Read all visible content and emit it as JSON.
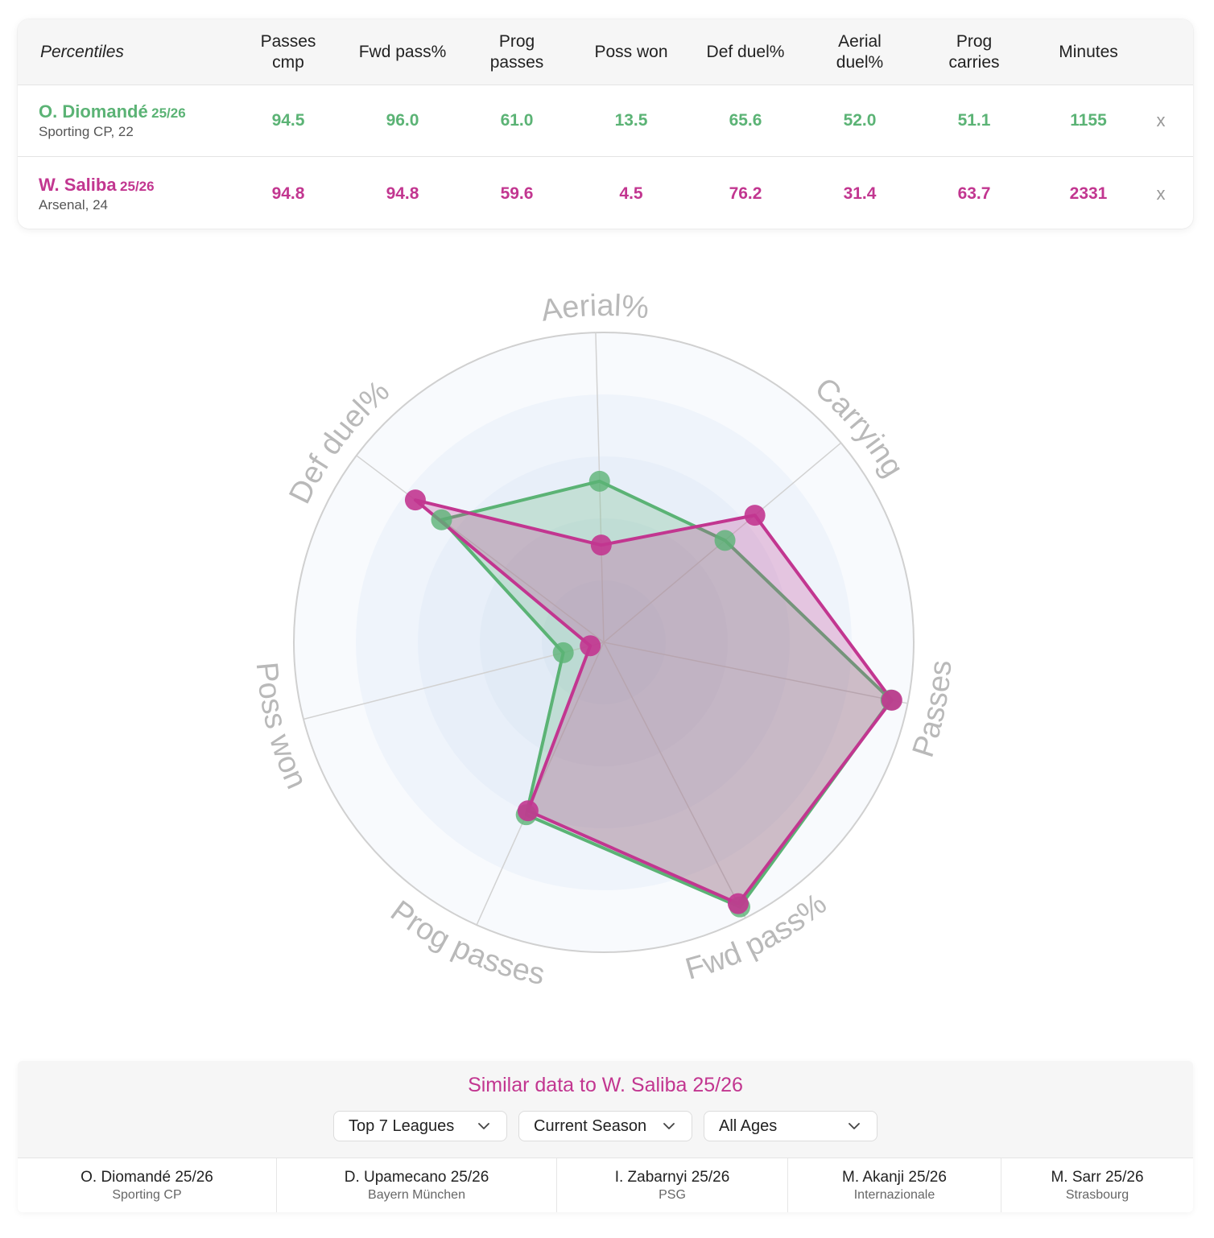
{
  "table": {
    "corner_label": "Percentiles",
    "columns": [
      "Passes\ncmp",
      "Fwd pass%",
      "Prog\npasses",
      "Poss won",
      "Def duel%",
      "Aerial\nduel%",
      "Prog\ncarries",
      "Minutes"
    ],
    "remove_label": "x",
    "players": [
      {
        "name": "O. Diomandé",
        "season": "25/26",
        "club": "Sporting CP, 22",
        "values": [
          "94.5",
          "96.0",
          "61.0",
          "13.5",
          "65.6",
          "52.0",
          "51.1",
          "1155"
        ],
        "color": "#5bb375"
      },
      {
        "name": "W. Saliba",
        "season": "25/26",
        "club": "Arsenal, 24",
        "values": [
          "94.8",
          "94.8",
          "59.6",
          "4.5",
          "76.2",
          "31.4",
          "63.7",
          "2331"
        ],
        "color": "#c23690"
      }
    ]
  },
  "chart_data": {
    "type": "radar",
    "axes": [
      "Aerial%",
      "Carrying",
      "Passes",
      "Fwd pass%",
      "Prog passes",
      "Poss won",
      "Def duel%"
    ],
    "range": [
      0,
      100
    ],
    "series": [
      {
        "name": "O. Diomandé 25/26",
        "values": [
          52.0,
          51.1,
          94.5,
          96.0,
          61.0,
          13.5,
          65.6
        ],
        "color": "#5bb375"
      },
      {
        "name": "W. Saliba 25/26",
        "values": [
          31.4,
          63.7,
          94.8,
          94.8,
          59.6,
          4.5,
          76.2
        ],
        "color": "#c23690"
      }
    ]
  },
  "similar": {
    "title": "Similar data to W. Saliba 25/26",
    "filters": [
      "Top 7 Leagues",
      "Current Season",
      "All Ages"
    ],
    "players": [
      {
        "name": "O. Diomandé 25/26",
        "club": "Sporting CP"
      },
      {
        "name": "D. Upamecano 25/26",
        "club": "Bayern München"
      },
      {
        "name": "I. Zabarnyi 25/26",
        "club": "PSG"
      },
      {
        "name": "M. Akanji 25/26",
        "club": "Internazionale"
      },
      {
        "name": "M. Sarr 25/26",
        "club": "Strasbourg"
      }
    ]
  }
}
